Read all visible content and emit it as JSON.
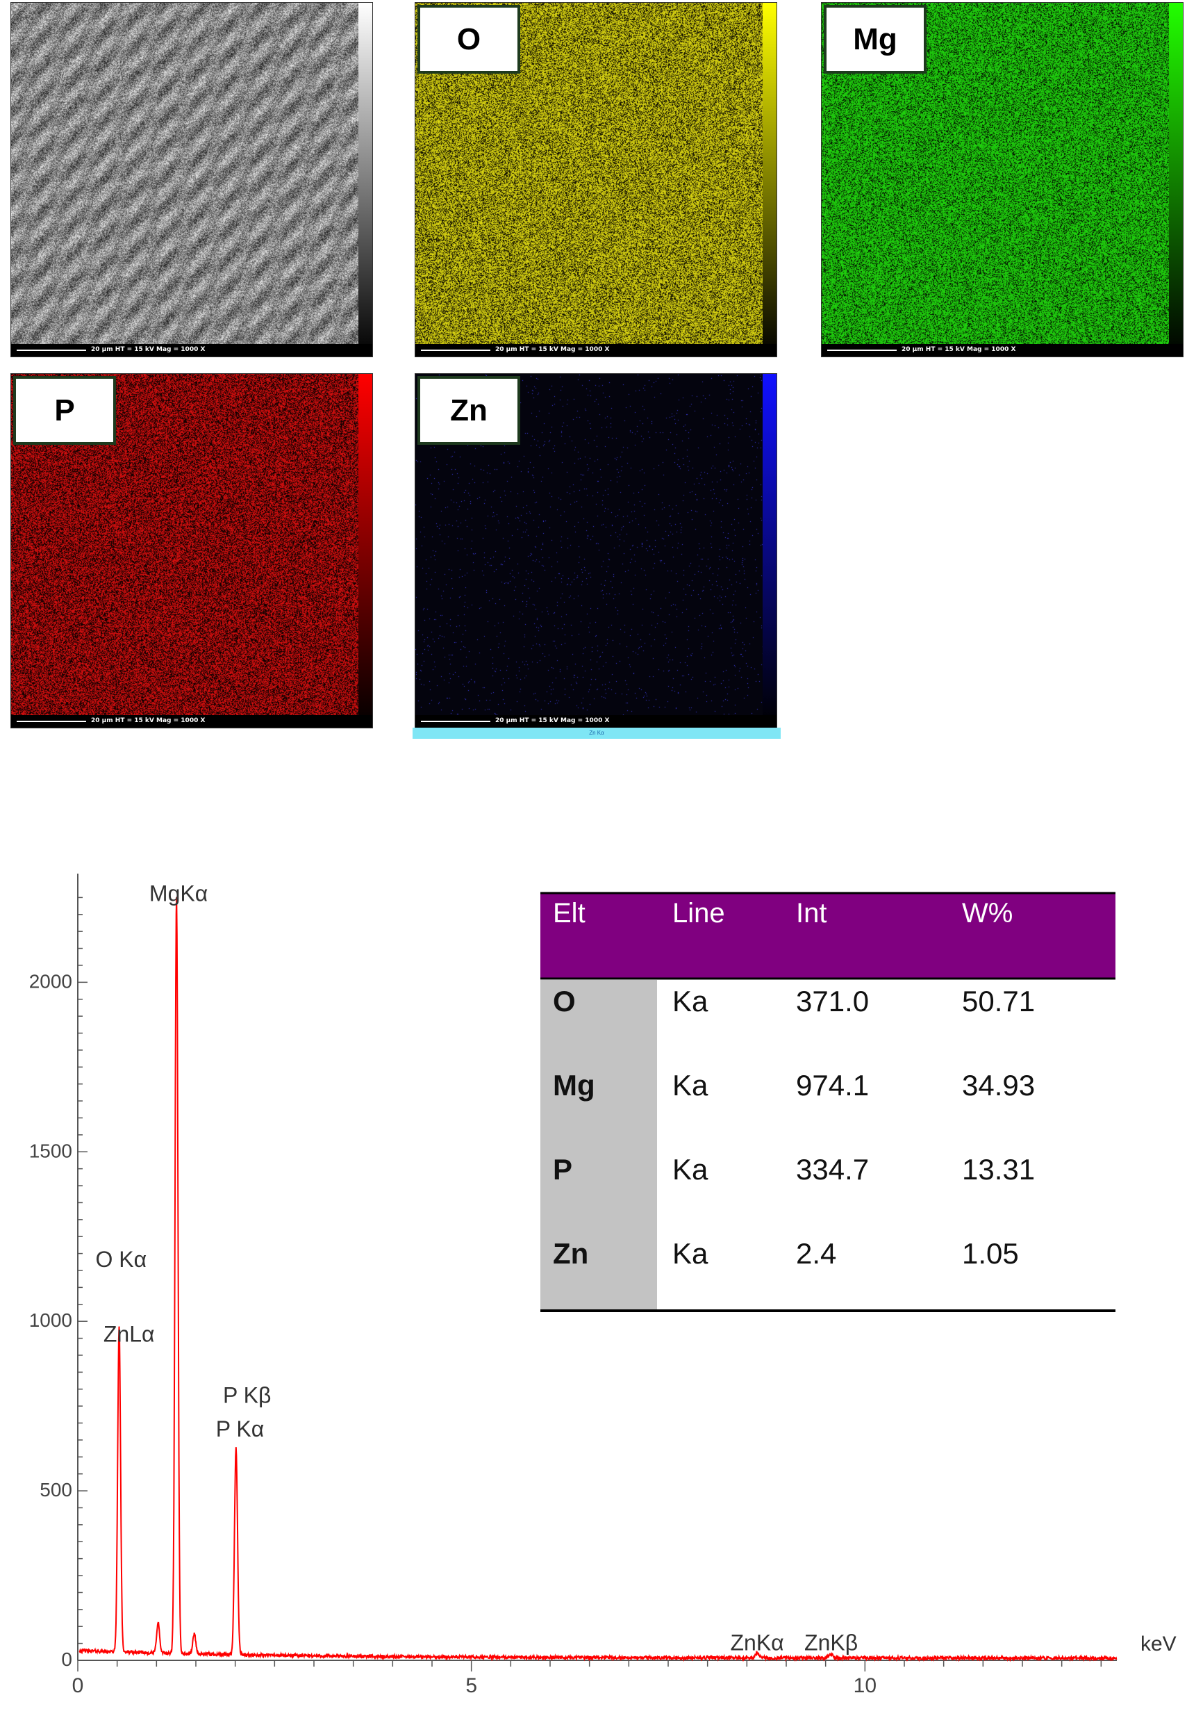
{
  "maps": [
    {
      "label": "",
      "scale": "20 µm   HT = 15 kV   Mag = 1000 X",
      "color": "#b4b4b4"
    },
    {
      "label": "O",
      "scale": "20 µm   HT = 15 kV   Mag = 1000 X",
      "color": "#e8e213"
    },
    {
      "label": "Mg",
      "scale": "20 µm   HT = 15 kV   Mag = 1000 X",
      "color": "#22e00f"
    },
    {
      "label": "P",
      "scale": "20 µm   HT = 15 kV   Mag = 1000 X",
      "color": "#e31010"
    },
    {
      "label": "Zn",
      "scale": "20 µm   HT = 15 kV   Mag = 1000 X",
      "color": "#2222ff"
    }
  ],
  "zn_footer": "Zn Kα",
  "chart_data": {
    "type": "line",
    "xlabel": "keV",
    "ylabel": "",
    "xlim": [
      0,
      13.2
    ],
    "ylim": [
      0,
      2300
    ],
    "x_ticks": [
      0,
      5,
      10
    ],
    "y_ticks": [
      0,
      500,
      1000,
      1500,
      2000
    ],
    "series": [
      {
        "color": "#ff0000",
        "peaks": [
          {
            "x": 0.525,
            "y": 960
          },
          {
            "x": 1.02,
            "y": 90
          },
          {
            "x": 1.254,
            "y": 2230
          },
          {
            "x": 1.48,
            "y": 60
          },
          {
            "x": 2.01,
            "y": 610
          },
          {
            "x": 8.63,
            "y": 15
          },
          {
            "x": 9.57,
            "y": 10
          }
        ]
      }
    ],
    "annotations": [
      {
        "text": "MgKα",
        "x": 1.28,
        "y": 2240
      },
      {
        "text": "O Kα",
        "x": 0.55,
        "y": 1160
      },
      {
        "text": "ZnLα",
        "x": 0.65,
        "y": 940
      },
      {
        "text": "P Kβ",
        "x": 2.15,
        "y": 760
      },
      {
        "text": "P Kα",
        "x": 2.06,
        "y": 660
      },
      {
        "text": "ZnKα",
        "x": 8.63,
        "y": 30
      },
      {
        "text": "ZnKβ",
        "x": 9.57,
        "y": 30
      }
    ]
  },
  "table": {
    "headers": [
      "Elt",
      "Line",
      "Int",
      "W%"
    ],
    "rows": [
      [
        "O",
        "Ka",
        "371.0",
        "50.71"
      ],
      [
        "Mg",
        "Ka",
        "974.1",
        "34.93"
      ],
      [
        "P",
        "Ka",
        "334.7",
        "13.31"
      ],
      [
        "Zn",
        "Ka",
        "2.4",
        "1.05"
      ]
    ]
  }
}
